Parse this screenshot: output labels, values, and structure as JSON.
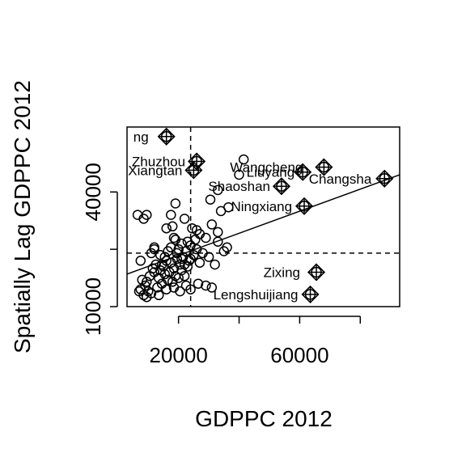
{
  "chart_data": {
    "type": "scatter",
    "title": "",
    "xlabel": "GDPPC 2012",
    "ylabel": "Spatially Lag GDPPC 2012",
    "xlim": [
      3000,
      93000
    ],
    "ylim": [
      10000,
      57000
    ],
    "x_ticks": [
      20000,
      40000,
      60000,
      80000
    ],
    "x_tick_labels": [
      "20000",
      "",
      "60000",
      ""
    ],
    "y_ticks": [
      10000,
      25000,
      40000
    ],
    "y_tick_labels": [
      "10000",
      "",
      "40000"
    ],
    "mean_x": 24000,
    "mean_y": 24000,
    "regression_line": {
      "x": [
        3000,
        93000
      ],
      "y": [
        18500,
        44500
      ]
    },
    "grid": false,
    "legend": "none",
    "points": [
      {
        "x": 7500,
        "y": 22000
      },
      {
        "x": 8000,
        "y": 17000
      },
      {
        "x": 9000,
        "y": 15500
      },
      {
        "x": 9500,
        "y": 16500
      },
      {
        "x": 10000,
        "y": 14000
      },
      {
        "x": 10500,
        "y": 18000
      },
      {
        "x": 11000,
        "y": 24000
      },
      {
        "x": 11500,
        "y": 20000
      },
      {
        "x": 12000,
        "y": 19000
      },
      {
        "x": 12500,
        "y": 21000
      },
      {
        "x": 13000,
        "y": 15000
      },
      {
        "x": 13500,
        "y": 17500
      },
      {
        "x": 14000,
        "y": 19500
      },
      {
        "x": 14500,
        "y": 16000
      },
      {
        "x": 15000,
        "y": 20500
      },
      {
        "x": 15500,
        "y": 18500
      },
      {
        "x": 16000,
        "y": 22000
      },
      {
        "x": 16500,
        "y": 17000
      },
      {
        "x": 17000,
        "y": 19000
      },
      {
        "x": 17500,
        "y": 21500
      },
      {
        "x": 18000,
        "y": 16500
      },
      {
        "x": 18500,
        "y": 20000
      },
      {
        "x": 19000,
        "y": 18000
      },
      {
        "x": 19500,
        "y": 22500
      },
      {
        "x": 20000,
        "y": 17500
      },
      {
        "x": 20500,
        "y": 21000
      },
      {
        "x": 21000,
        "y": 19500
      },
      {
        "x": 21500,
        "y": 23000
      },
      {
        "x": 22000,
        "y": 18000
      },
      {
        "x": 22500,
        "y": 24500
      },
      {
        "x": 23000,
        "y": 20500
      },
      {
        "x": 23500,
        "y": 22000
      },
      {
        "x": 24000,
        "y": 26000
      },
      {
        "x": 25000,
        "y": 23500
      },
      {
        "x": 26000,
        "y": 25000
      },
      {
        "x": 27000,
        "y": 21500
      },
      {
        "x": 28000,
        "y": 24000
      },
      {
        "x": 30000,
        "y": 23000
      },
      {
        "x": 32000,
        "y": 21000
      },
      {
        "x": 33000,
        "y": 27000
      },
      {
        "x": 35000,
        "y": 24500
      },
      {
        "x": 36000,
        "y": 25500
      },
      {
        "x": 12000,
        "y": 25000
      },
      {
        "x": 14000,
        "y": 23500
      },
      {
        "x": 16500,
        "y": 24500
      },
      {
        "x": 19000,
        "y": 27500
      },
      {
        "x": 18000,
        "y": 31000
      },
      {
        "x": 17500,
        "y": 34000
      },
      {
        "x": 19000,
        "y": 37000
      },
      {
        "x": 22000,
        "y": 33000
      },
      {
        "x": 24500,
        "y": 30500
      },
      {
        "x": 26000,
        "y": 30000
      },
      {
        "x": 25500,
        "y": 27500
      },
      {
        "x": 27000,
        "y": 29000
      },
      {
        "x": 29000,
        "y": 28000
      },
      {
        "x": 31000,
        "y": 31500
      },
      {
        "x": 33000,
        "y": 29500
      },
      {
        "x": 34000,
        "y": 35000
      },
      {
        "x": 30500,
        "y": 38000
      },
      {
        "x": 33000,
        "y": 40500
      },
      {
        "x": 36500,
        "y": 36000
      },
      {
        "x": 40000,
        "y": 44500
      },
      {
        "x": 41500,
        "y": 48500
      },
      {
        "x": 6500,
        "y": 34000
      },
      {
        "x": 8500,
        "y": 33000
      },
      {
        "x": 9500,
        "y": 34000
      },
      {
        "x": 12000,
        "y": 25500
      },
      {
        "x": 16000,
        "y": 30500
      },
      {
        "x": 18500,
        "y": 28000
      },
      {
        "x": 21000,
        "y": 26500
      },
      {
        "x": 23000,
        "y": 27000
      },
      {
        "x": 20000,
        "y": 25000
      },
      {
        "x": 7000,
        "y": 14000
      },
      {
        "x": 7500,
        "y": 14500
      },
      {
        "x": 8500,
        "y": 13000
      },
      {
        "x": 9500,
        "y": 12500
      },
      {
        "x": 11000,
        "y": 13500
      },
      {
        "x": 13500,
        "y": 13000
      },
      {
        "x": 16000,
        "y": 14500
      },
      {
        "x": 18500,
        "y": 15000
      },
      {
        "x": 20500,
        "y": 14000
      },
      {
        "x": 22500,
        "y": 15500
      },
      {
        "x": 24000,
        "y": 14500
      },
      {
        "x": 26500,
        "y": 16000
      },
      {
        "x": 29000,
        "y": 15500
      },
      {
        "x": 31000,
        "y": 15000
      },
      {
        "x": 14500,
        "y": 21000
      },
      {
        "x": 15500,
        "y": 23000
      },
      {
        "x": 17500,
        "y": 25500
      },
      {
        "x": 19500,
        "y": 24000
      },
      {
        "x": 21000,
        "y": 22500
      },
      {
        "x": 22000,
        "y": 21000
      },
      {
        "x": 24000,
        "y": 22500
      }
    ],
    "influential_points": [
      {
        "label": "Changsha",
        "x": 88000,
        "y": 43500
      },
      {
        "label": "Wangcheng",
        "x": 68000,
        "y": 46500
      },
      {
        "label": "Liuyang",
        "x": 61000,
        "y": 45200
      },
      {
        "label": "Shaoshan",
        "x": 54000,
        "y": 41500
      },
      {
        "label": "Ningxiang",
        "x": 61500,
        "y": 36300
      },
      {
        "label": "Zixing",
        "x": 65500,
        "y": 19000
      },
      {
        "label": "Lengshuijiang",
        "x": 63500,
        "y": 13200
      },
      {
        "label": "Zhuzhou",
        "x": 26000,
        "y": 48000
      },
      {
        "label": "Xiangtan",
        "x": 25000,
        "y": 45700
      },
      {
        "label": "Hengyang",
        "x": 16000,
        "y": 54500
      }
    ],
    "influential_labels_shown": [
      "ng",
      "Zhuzhou",
      "Xiangtan",
      "Wangcheng",
      "Liuyang",
      "Changsha",
      "Shaoshan",
      "Ningxiang",
      "Zixing",
      "Lengshuijiang"
    ]
  }
}
